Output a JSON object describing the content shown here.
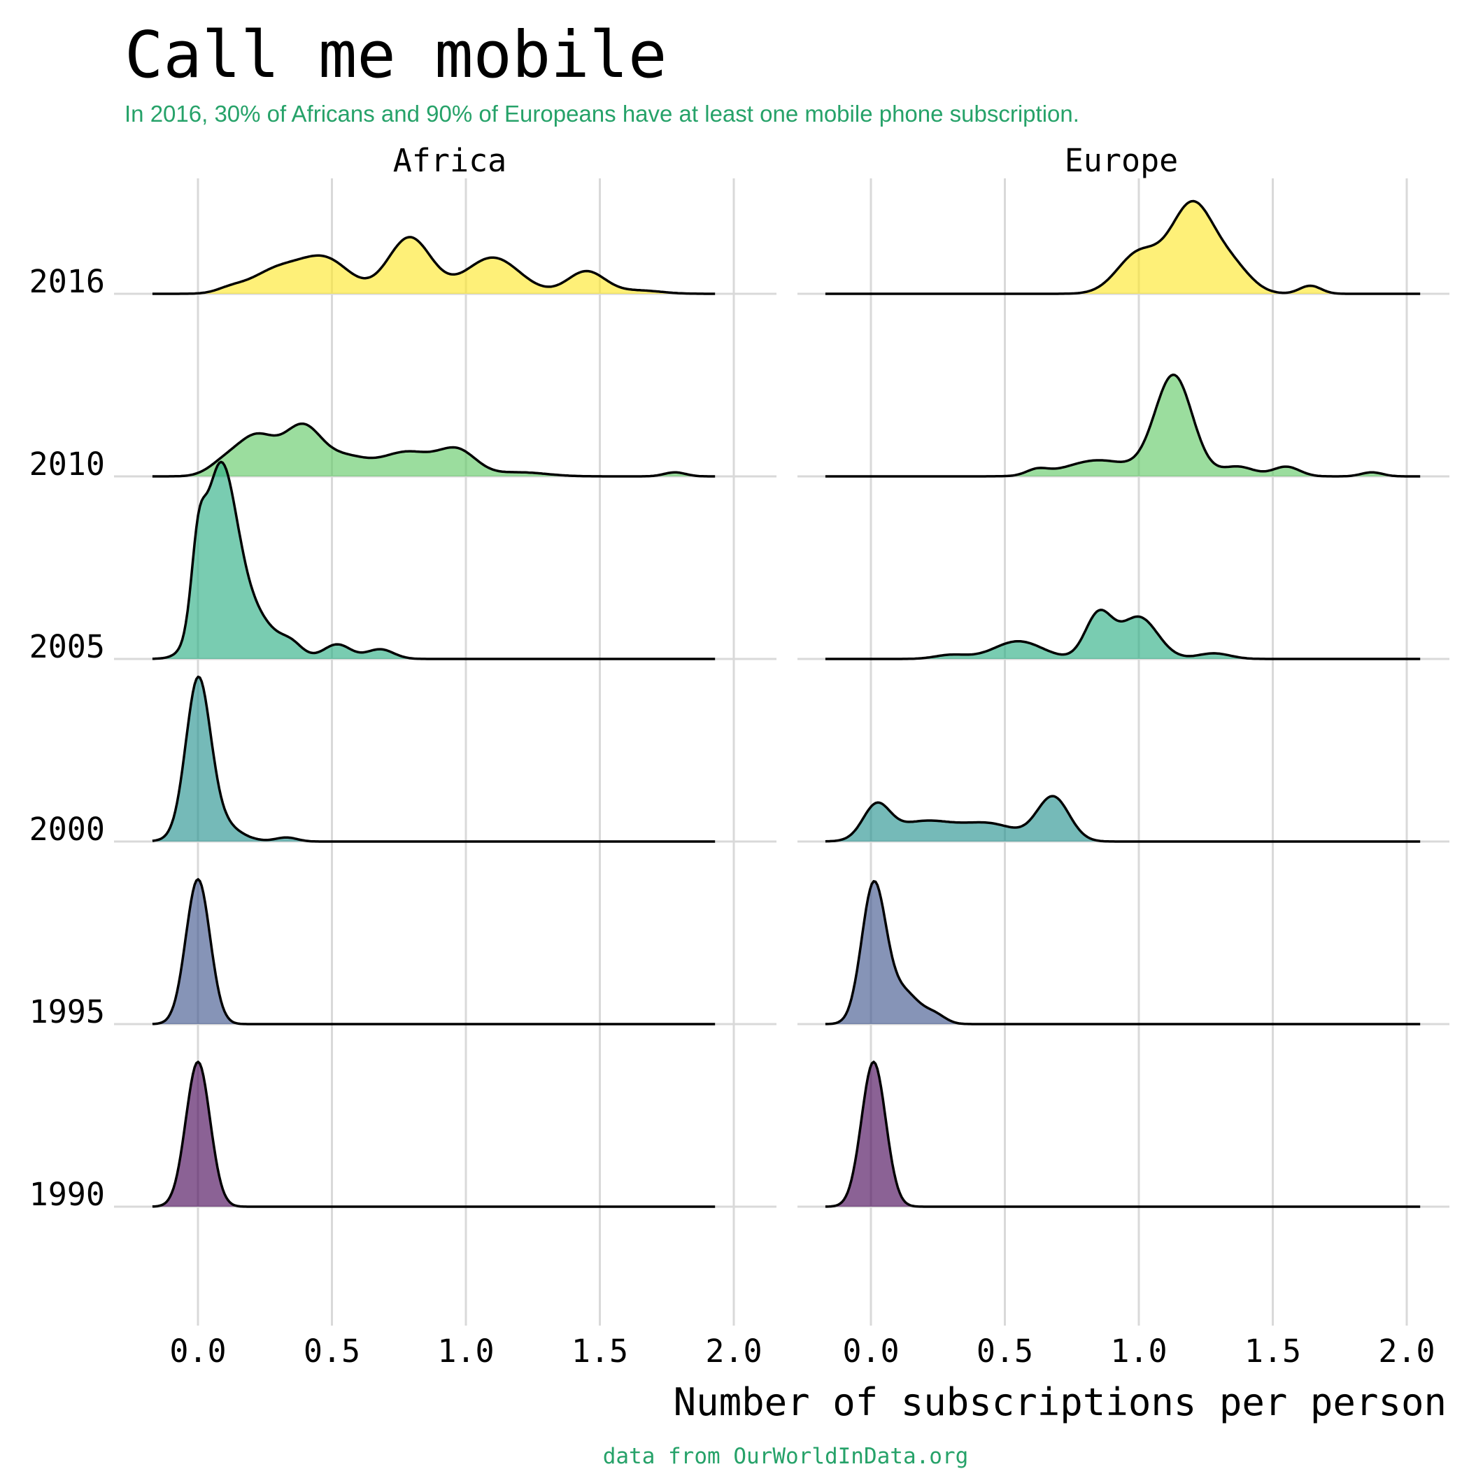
{
  "chart_data": {
    "type": "ridgeline",
    "title": "Call me mobile",
    "subtitle": "In 2016, 30% of Africans and 90% of Europeans have at least one mobile phone subscription.",
    "caption": "data from OurWorldInData.org",
    "xlabel": "Number of subscriptions per person",
    "xlim": [
      -0.17,
      2.15
    ],
    "x_ticks": [
      "0.0",
      "0.5",
      "1.0",
      "1.5",
      "2.0"
    ],
    "x_tick_values": [
      0,
      0.5,
      1,
      1.5,
      2
    ],
    "years": [
      "1990",
      "1995",
      "2000",
      "2005",
      "2010",
      "2016"
    ],
    "colors": {
      "1990": "#440154",
      "1995": "#3B528B",
      "2000": "#21908C",
      "2005": "#27AD81",
      "2010": "#5DC863",
      "2016": "#FDE725"
    },
    "accent_color": "#26A269",
    "panels": [
      {
        "name": "Africa",
        "x_range": [
          -0.17,
          1.93
        ],
        "ridges": [
          {
            "year": "1990",
            "peaks": [
              [
                0.0,
                0.0,
                1.8,
                0.045
              ]
            ]
          },
          {
            "year": "1995",
            "peaks": [
              [
                0.0,
                0.0,
                1.8,
                0.045
              ]
            ]
          },
          {
            "year": "2000",
            "peaks": [
              [
                0.0,
                0.0,
                1.8,
                0.045
              ],
              [
                0.05,
                0.05,
                0.3,
                0.08
              ],
              [
                0.33,
                0.33,
                0.05,
                0.04
              ]
            ]
          },
          {
            "year": "2005",
            "peaks": [
              [
                0.0,
                0.0,
                0.8,
                0.025
              ],
              [
                0.08,
                0.08,
                2.0,
                0.06
              ],
              [
                0.17,
                0.17,
                0.65,
                0.1
              ],
              [
                0.35,
                0.35,
                0.12,
                0.04
              ],
              [
                0.52,
                0.52,
                0.18,
                0.05
              ],
              [
                0.68,
                0.68,
                0.12,
                0.05
              ]
            ]
          },
          {
            "year": "2010",
            "peaks": [
              [
                0.1,
                0.1,
                0.16,
                0.06
              ],
              [
                0.22,
                0.22,
                0.48,
                0.07
              ],
              [
                0.39,
                0.39,
                0.6,
                0.07
              ],
              [
                0.55,
                0.55,
                0.22,
                0.08
              ],
              [
                0.78,
                0.78,
                0.3,
                0.1
              ],
              [
                0.97,
                0.97,
                0.3,
                0.07
              ],
              [
                1.2,
                1.2,
                0.05,
                0.1
              ],
              [
                1.78,
                1.78,
                0.05,
                0.04
              ]
            ]
          },
          {
            "year": "2016",
            "peaks": [
              [
                0.12,
                0.12,
                0.05,
                0.05
              ],
              [
                0.3,
                0.3,
                0.3,
                0.1
              ],
              [
                0.48,
                0.48,
                0.4,
                0.09
              ],
              [
                0.79,
                0.79,
                0.7,
                0.08
              ],
              [
                1.1,
                1.1,
                0.45,
                0.1
              ],
              [
                1.45,
                1.45,
                0.28,
                0.07
              ],
              [
                1.65,
                1.65,
                0.04,
                0.08
              ]
            ]
          }
        ]
      },
      {
        "name": "Europe",
        "x_range": [
          -0.17,
          2.05
        ],
        "ridges": [
          {
            "year": "1990",
            "peaks": [
              [
                0.01,
                0.01,
                1.8,
                0.045
              ]
            ]
          },
          {
            "year": "1995",
            "peaks": [
              [
                0.01,
                0.01,
                1.7,
                0.045
              ],
              [
                0.12,
                0.12,
                0.4,
                0.06
              ],
              [
                0.24,
                0.24,
                0.1,
                0.04
              ]
            ]
          },
          {
            "year": "2000",
            "peaks": [
              [
                0.02,
                0.02,
                0.4,
                0.05
              ],
              [
                0.2,
                0.2,
                0.25,
                0.12
              ],
              [
                0.45,
                0.45,
                0.2,
                0.1
              ],
              [
                0.68,
                0.68,
                0.55,
                0.06
              ]
            ]
          },
          {
            "year": "2005",
            "peaks": [
              [
                0.3,
                0.3,
                0.05,
                0.06
              ],
              [
                0.55,
                0.55,
                0.22,
                0.09
              ],
              [
                0.85,
                0.85,
                0.55,
                0.05
              ],
              [
                1.0,
                1.0,
                0.52,
                0.07
              ],
              [
                1.28,
                1.28,
                0.07,
                0.06
              ]
            ]
          },
          {
            "year": "2010",
            "peaks": [
              [
                0.62,
                0.62,
                0.07,
                0.04
              ],
              [
                0.85,
                0.85,
                0.2,
                0.12
              ],
              [
                1.13,
                1.13,
                1.25,
                0.07
              ],
              [
                1.37,
                1.37,
                0.12,
                0.06
              ],
              [
                1.55,
                1.55,
                0.12,
                0.05
              ],
              [
                1.87,
                1.87,
                0.05,
                0.04
              ]
            ]
          },
          {
            "year": "2016",
            "peaks": [
              [
                1.0,
                1.0,
                0.5,
                0.08
              ],
              [
                1.2,
                1.2,
                1.1,
                0.08
              ],
              [
                1.35,
                1.35,
                0.3,
                0.07
              ],
              [
                1.64,
                1.64,
                0.1,
                0.04
              ]
            ]
          }
        ]
      }
    ]
  }
}
